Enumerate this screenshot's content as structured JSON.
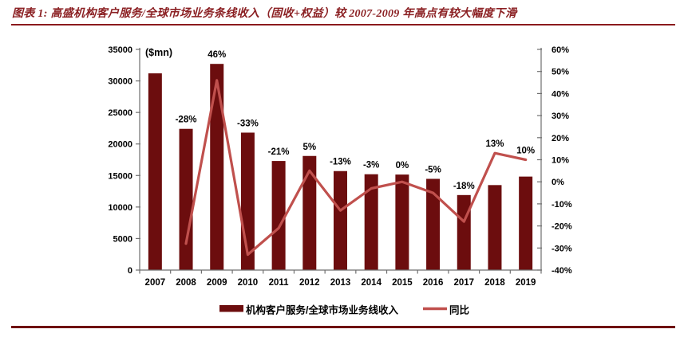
{
  "caption": {
    "text": "图表 1:  高盛机构客户服务/全球市场业务条线收入（固收+权益）较 2007-2009 年高点有较大幅度下滑"
  },
  "colors": {
    "bar": "#6C0D0E",
    "line": "#C0504D",
    "caption_text": "#8B2023",
    "caption_rule": "#8B1A1C",
    "bottom_rule": "#6F0D0E",
    "axis": "#6f6f6f",
    "label_text": "#000000"
  },
  "chart_data": {
    "type": "bar",
    "combo": "bar+line",
    "unit_label": "($mn)",
    "categories": [
      "2007",
      "2008",
      "2009",
      "2010",
      "2011",
      "2012",
      "2013",
      "2014",
      "2015",
      "2016",
      "2017",
      "2018",
      "2019"
    ],
    "series": [
      {
        "name": "机构客户服务/全球市场业务线收入",
        "type": "bar",
        "axis": "left",
        "values": [
          31200,
          22400,
          32700,
          21800,
          17300,
          18100,
          15700,
          15200,
          15150,
          14470,
          11900,
          13480,
          14830
        ]
      },
      {
        "name": "同比",
        "type": "line",
        "axis": "right",
        "values": [
          null,
          -28,
          46,
          -33,
          -21,
          5,
          -13,
          -3,
          0,
          -5,
          -18,
          13,
          10
        ]
      }
    ],
    "data_labels": [
      "",
      "-28%",
      "46%",
      "-33%",
      "-21%",
      "5%",
      "-13%",
      "-3%",
      "0%",
      "-5%",
      "-18%",
      "13%",
      "10%"
    ],
    "left_axis": {
      "min": 0,
      "max": 35000,
      "step": 5000,
      "tick_labels": [
        "0",
        "5000",
        "10000",
        "15000",
        "20000",
        "25000",
        "30000",
        "35000"
      ]
    },
    "right_axis": {
      "min": -40,
      "max": 60,
      "step": 10,
      "tick_labels": [
        "60%",
        "50%",
        "40%",
        "30%",
        "20%",
        "10%",
        "0%",
        "-10%",
        "-20%",
        "-30%",
        "-40%"
      ]
    },
    "legend": [
      {
        "label": "机构客户服务/全球市场业务线收入",
        "swatch": "bar"
      },
      {
        "label": "同比",
        "swatch": "line"
      }
    ],
    "legend_position": "bottom",
    "grid": false
  }
}
